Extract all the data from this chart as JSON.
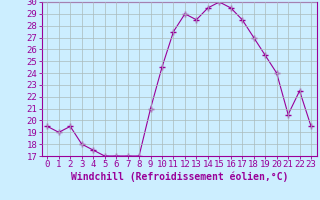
{
  "x": [
    0,
    1,
    2,
    3,
    4,
    5,
    6,
    7,
    8,
    9,
    10,
    11,
    12,
    13,
    14,
    15,
    16,
    17,
    18,
    19,
    20,
    21,
    22,
    23
  ],
  "y": [
    19.5,
    19.0,
    19.5,
    18.0,
    17.5,
    17.0,
    17.0,
    17.0,
    17.0,
    21.0,
    24.5,
    27.5,
    29.0,
    28.5,
    29.5,
    30.0,
    29.5,
    28.5,
    27.0,
    25.5,
    24.0,
    20.5,
    22.5,
    19.5
  ],
  "line_color": "#990099",
  "marker": "+",
  "marker_size": 4,
  "bg_color": "#cceeff",
  "grid_color": "#aabbbb",
  "xlabel": "Windchill (Refroidissement éolien,°C)",
  "xlim": [
    -0.5,
    23.5
  ],
  "ylim": [
    17,
    30
  ],
  "yticks": [
    17,
    18,
    19,
    20,
    21,
    22,
    23,
    24,
    25,
    26,
    27,
    28,
    29,
    30
  ],
  "xticks": [
    0,
    1,
    2,
    3,
    4,
    5,
    6,
    7,
    8,
    9,
    10,
    11,
    12,
    13,
    14,
    15,
    16,
    17,
    18,
    19,
    20,
    21,
    22,
    23
  ],
  "tick_color": "#990099",
  "label_color": "#990099",
  "spine_color": "#990099",
  "font_size": 6.5
}
